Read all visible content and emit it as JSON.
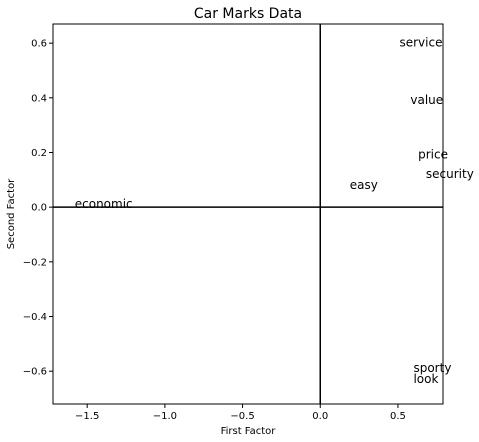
{
  "chart_data": {
    "type": "scatter",
    "title": "Car Marks Data",
    "xlabel": "First Factor",
    "ylabel": "Second Factor",
    "xlim": [
      -1.72,
      0.79
    ],
    "ylim": [
      -0.72,
      0.67
    ],
    "xticks": [
      -1.5,
      -1.0,
      -0.5,
      0.0,
      0.5
    ],
    "xtick_labels": [
      "−1.5",
      "−1.0",
      "−0.5",
      "0.0",
      "0.5"
    ],
    "yticks": [
      -0.6,
      -0.4,
      -0.2,
      0.0,
      0.2,
      0.4,
      0.6
    ],
    "ytick_labels": [
      "−0.6",
      "−0.4",
      "−0.2",
      "0.0",
      "0.2",
      "0.4",
      "0.6"
    ],
    "reference_lines": {
      "x": 0,
      "y": 0
    },
    "grid": false,
    "points": [
      {
        "label": "service",
        "x": 0.51,
        "y": 0.6
      },
      {
        "label": "value",
        "x": 0.58,
        "y": 0.39
      },
      {
        "label": "price",
        "x": 0.63,
        "y": 0.19
      },
      {
        "label": "security",
        "x": 0.68,
        "y": 0.12
      },
      {
        "label": "easy",
        "x": 0.19,
        "y": 0.08
      },
      {
        "label": "economic",
        "x": -1.58,
        "y": 0.01
      },
      {
        "label": "sporty",
        "x": 0.6,
        "y": -0.59
      },
      {
        "label": "look",
        "x": 0.6,
        "y": -0.63
      }
    ]
  }
}
